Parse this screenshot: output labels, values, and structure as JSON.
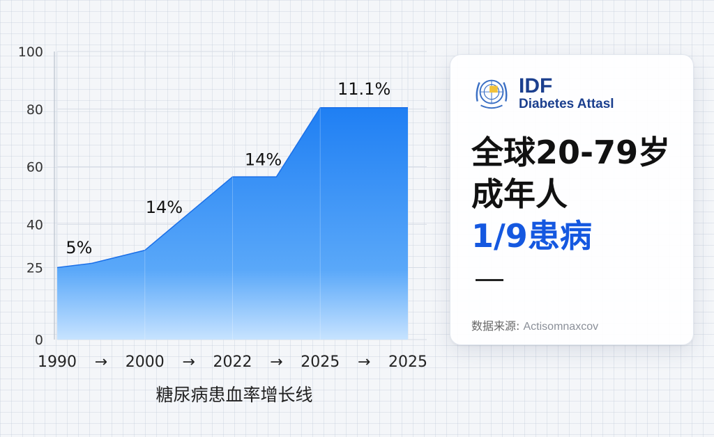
{
  "chart_data": {
    "type": "area",
    "x_categories": [
      "1990",
      "2000",
      "2022",
      "2025",
      "2025"
    ],
    "arrow_glyph": "→",
    "points": [
      {
        "x": 0,
        "y": 25
      },
      {
        "x": 0.4,
        "y": 26.5
      },
      {
        "x": 1,
        "y": 31
      },
      {
        "x": 2,
        "y": 56.5
      },
      {
        "x": 2.5,
        "y": 56.5
      },
      {
        "x": 3,
        "y": 80.5
      },
      {
        "x": 4,
        "y": 80.5
      }
    ],
    "data_labels": [
      {
        "text": "5%",
        "x": 0.25,
        "y": 30
      },
      {
        "text": "14%",
        "x": 1.22,
        "y": 44
      },
      {
        "text": "14%",
        "x": 2.35,
        "y": 60.5
      },
      {
        "text": "11.1%",
        "x": 3.5,
        "y": 85
      }
    ],
    "yticks": [
      0,
      25,
      40,
      60,
      80,
      100
    ],
    "ylim": [
      0,
      100
    ],
    "xlabel": "糖尿病患血率增长线",
    "grid": true
  },
  "card": {
    "brand_main": "IDF",
    "brand_sub": "Diabetes Attasl",
    "headline_line1": "全球20-79岁",
    "headline_line2": "成年人",
    "headline_line3": "1/9患病",
    "source_label": "数据来源:",
    "source_value": "Actisomnaxcov",
    "emblem_icon": "un-emblem-icon"
  },
  "colors": {
    "accent": "#1558e0",
    "area_top": "#1f7ff3",
    "area_bottom": "#c7e3ff",
    "brand": "#1b3f8e"
  }
}
